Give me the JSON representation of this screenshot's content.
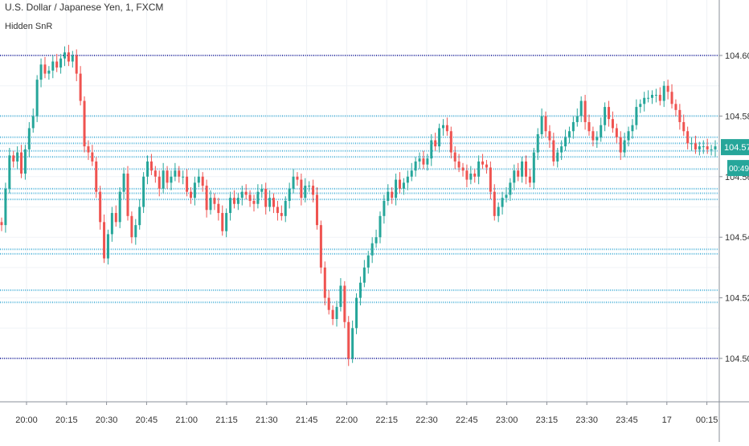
{
  "chart_data": {
    "type": "candlestick",
    "title": "U.S. Dollar / Japanese Yen, 1, FXCM",
    "indicator": "Hidden SnR",
    "price_axis": {
      "range": [
        104.4925,
        104.6125
      ],
      "tick_labels": [
        "104.600",
        "104.580",
        "104.560",
        "104.540",
        "104.520",
        "104.500"
      ],
      "tick_values": [
        104.6,
        104.58,
        104.56,
        104.54,
        104.52,
        104.5
      ]
    },
    "time_axis": {
      "tick_labels": [
        "20:00",
        "20:15",
        "20:30",
        "20:45",
        "21:00",
        "21:15",
        "21:30",
        "21:45",
        "22:00",
        "22:15",
        "22:30",
        "22:45",
        "23:00",
        "23:15",
        "23:30",
        "23:45",
        "17",
        "00:15"
      ]
    },
    "current_price": {
      "value": 104.57,
      "label": "104.570",
      "countdown": "00:49"
    },
    "support_resistance_levels": {
      "major": [
        104.6,
        104.5
      ],
      "minor": [
        104.58,
        104.573,
        104.571,
        104.5685,
        104.5665,
        104.5625,
        104.556,
        104.5545,
        104.5525,
        104.536,
        104.5345,
        104.5225,
        104.5185
      ]
    },
    "candle_values": [
      104.544,
      104.556,
      104.567,
      104.565,
      104.568,
      104.561,
      104.569,
      104.576,
      104.58,
      104.592,
      104.597,
      104.594,
      104.595,
      104.598,
      104.596,
      104.599,
      104.601,
      104.598,
      104.6,
      104.594,
      104.585,
      104.57,
      104.568,
      104.565,
      104.555,
      104.545,
      104.533,
      104.541,
      104.548,
      104.545,
      104.555,
      104.561,
      104.547,
      104.54,
      104.544,
      104.55,
      104.56,
      104.565,
      104.562,
      104.56,
      104.556,
      104.562,
      104.558,
      104.56,
      104.562,
      104.56,
      104.56,
      104.555,
      104.553,
      104.558,
      104.56,
      104.557,
      104.549,
      104.553,
      104.551,
      104.548,
      104.542,
      104.548,
      104.553,
      104.551,
      104.553,
      104.555,
      104.554,
      104.552,
      104.551,
      104.555,
      104.556,
      104.55,
      104.553,
      104.55,
      104.548,
      104.547,
      104.552,
      104.556,
      104.56,
      104.559,
      104.553,
      104.557,
      104.557,
      104.554,
      104.544,
      104.53,
      104.52,
      104.516,
      104.513,
      104.517,
      104.524,
      104.512,
      104.5,
      104.51,
      104.52,
      104.525,
      104.53,
      104.534,
      104.538,
      104.54,
      104.547,
      104.552,
      104.555,
      104.553,
      104.559,
      104.556,
      104.558,
      104.56,
      104.562,
      104.565,
      104.566,
      104.564,
      104.566,
      104.572,
      104.57,
      104.576,
      104.577,
      104.575,
      104.568,
      104.565,
      104.563,
      104.562,
      104.559,
      104.561,
      104.56,
      104.565,
      104.564,
      104.563,
      104.555,
      104.547,
      104.55,
      104.553,
      104.554,
      104.558,
      104.562,
      104.56,
      104.565,
      104.56,
      104.558,
      104.568,
      104.574,
      104.58,
      104.575,
      104.572,
      104.565,
      104.568,
      104.57,
      104.573,
      104.575,
      104.578,
      104.58,
      104.585,
      104.578,
      104.575,
      104.572,
      104.573,
      104.577,
      104.583,
      104.579,
      104.576,
      104.573,
      104.568,
      104.572,
      104.575,
      104.577,
      104.583,
      104.584,
      104.586,
      104.586,
      104.587,
      104.587,
      104.585,
      104.59,
      104.588,
      104.584,
      104.582,
      104.578,
      104.575,
      104.571,
      104.571,
      104.569,
      104.57,
      104.57,
      104.569,
      104.569,
      104.57
    ]
  }
}
